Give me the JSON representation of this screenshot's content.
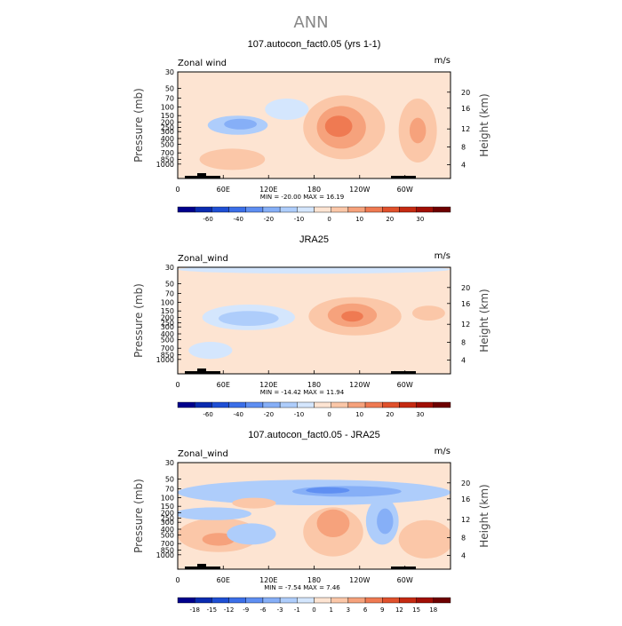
{
  "figure_title": "ANN",
  "colors": {
    "bg": "#ffffff",
    "title": "#888888",
    "topography": "#000000"
  },
  "chart_data": [
    {
      "type": "contour",
      "title": "107.autocon_fact0.05 (yrs 1-1)",
      "left_label": "Zonal wind",
      "units_label": "m/s",
      "ylabel_left": "Pressure (mb)",
      "ylabel_right": "Height (km)",
      "pressure_ticks": [
        "30",
        "50",
        "70",
        "100",
        "150",
        "200",
        "250",
        "300",
        "400",
        "500",
        "700",
        "850",
        "1000"
      ],
      "height_ticks": [
        "20",
        "16",
        "12",
        "8",
        "4"
      ],
      "x_ticks": [
        "0",
        "60E",
        "120E",
        "180",
        "120W",
        "60W"
      ],
      "stats": "MIN = -20.00   MAX = 16.19",
      "min": -20.0,
      "max": 16.19,
      "colorbar_labels": [
        "-60",
        "-40",
        "-20",
        "-10",
        "0",
        "10",
        "20",
        "30"
      ],
      "colorbar_colors": [
        "#00008c",
        "#0a2bb0",
        "#1f4fd4",
        "#3b6fe8",
        "#5f8ff2",
        "#86aff7",
        "#aecdfb",
        "#d4e6fd",
        "#fde4d2",
        "#fbc7a8",
        "#f6a27c",
        "#ef7a52",
        "#e0512c",
        "#c52a12",
        "#a10f05",
        "#6e0000"
      ],
      "regions": [
        {
          "color": "#d4e6fd",
          "rx": 0.08,
          "ry": 0.1,
          "x": 0.4,
          "y": 0.35
        },
        {
          "color": "#aecdfb",
          "rx": 0.11,
          "ry": 0.09,
          "x": 0.22,
          "y": 0.5
        },
        {
          "color": "#86aff7",
          "rx": 0.06,
          "ry": 0.05,
          "x": 0.23,
          "y": 0.49
        },
        {
          "color": "#fbc7a8",
          "rx": 0.15,
          "ry": 0.3,
          "x": 0.61,
          "y": 0.52
        },
        {
          "color": "#f6a27c",
          "rx": 0.09,
          "ry": 0.2,
          "x": 0.6,
          "y": 0.52
        },
        {
          "color": "#ef7a52",
          "rx": 0.05,
          "ry": 0.1,
          "x": 0.59,
          "y": 0.51
        },
        {
          "color": "#fbc7a8",
          "rx": 0.07,
          "ry": 0.3,
          "x": 0.88,
          "y": 0.55
        },
        {
          "color": "#f6a27c",
          "rx": 0.03,
          "ry": 0.12,
          "x": 0.88,
          "y": 0.55
        },
        {
          "color": "#fbc7a8",
          "rx": 0.12,
          "ry": 0.1,
          "x": 0.2,
          "y": 0.82
        }
      ]
    },
    {
      "type": "contour",
      "title": "JRA25",
      "left_label": "Zonal_wind",
      "units_label": "m/s",
      "ylabel_left": "Pressure (mb)",
      "ylabel_right": "Height (km)",
      "pressure_ticks": [
        "30",
        "50",
        "70",
        "100",
        "150",
        "200",
        "250",
        "300",
        "400",
        "500",
        "700",
        "850",
        "1000"
      ],
      "height_ticks": [
        "20",
        "16",
        "12",
        "8",
        "4"
      ],
      "x_ticks": [
        "0",
        "60E",
        "120E",
        "180",
        "120W",
        "60W"
      ],
      "stats": "MIN = -14.42   MAX = 11.94",
      "min": -14.42,
      "max": 11.94,
      "colorbar_labels": [
        "-60",
        "-40",
        "-20",
        "-10",
        "0",
        "10",
        "20",
        "30"
      ],
      "colorbar_colors": [
        "#00008c",
        "#0a2bb0",
        "#1f4fd4",
        "#3b6fe8",
        "#5f8ff2",
        "#86aff7",
        "#aecdfb",
        "#d4e6fd",
        "#fde4d2",
        "#fbc7a8",
        "#f6a27c",
        "#ef7a52",
        "#e0512c",
        "#c52a12",
        "#a10f05",
        "#6e0000"
      ],
      "regions": [
        {
          "color": "#d4e6fd",
          "rx": 0.5,
          "ry": 0.04,
          "x": 0.5,
          "y": 0.02
        },
        {
          "color": "#d4e6fd",
          "rx": 0.17,
          "ry": 0.12,
          "x": 0.26,
          "y": 0.47
        },
        {
          "color": "#aecdfb",
          "rx": 0.11,
          "ry": 0.07,
          "x": 0.26,
          "y": 0.48
        },
        {
          "color": "#fbc7a8",
          "rx": 0.17,
          "ry": 0.18,
          "x": 0.65,
          "y": 0.46
        },
        {
          "color": "#f6a27c",
          "rx": 0.09,
          "ry": 0.11,
          "x": 0.64,
          "y": 0.45
        },
        {
          "color": "#ef7a52",
          "rx": 0.04,
          "ry": 0.05,
          "x": 0.64,
          "y": 0.46
        },
        {
          "color": "#fbc7a8",
          "rx": 0.06,
          "ry": 0.07,
          "x": 0.92,
          "y": 0.43
        },
        {
          "color": "#d4e6fd",
          "rx": 0.08,
          "ry": 0.08,
          "x": 0.12,
          "y": 0.78
        }
      ]
    },
    {
      "type": "contour",
      "title": "107.autocon_fact0.05 - JRA25",
      "left_label": "Zonal_wind",
      "units_label": "m/s",
      "ylabel_left": "Pressure (mb)",
      "ylabel_right": "Height (km)",
      "pressure_ticks": [
        "30",
        "50",
        "70",
        "100",
        "150",
        "200",
        "250",
        "300",
        "400",
        "500",
        "700",
        "850",
        "1000"
      ],
      "height_ticks": [
        "20",
        "16",
        "12",
        "8",
        "4"
      ],
      "x_ticks": [
        "0",
        "60E",
        "120E",
        "180",
        "120W",
        "60W"
      ],
      "stats": "MIN = -7.54   MAX = 7.46",
      "min": -7.54,
      "max": 7.46,
      "colorbar_labels": [
        "-18",
        "-15",
        "-12",
        "-9",
        "-6",
        "-3",
        "-1",
        "0",
        "1",
        "3",
        "6",
        "9",
        "12",
        "15",
        "18"
      ],
      "colorbar_colors": [
        "#00008c",
        "#0a2bb0",
        "#1f4fd4",
        "#3b6fe8",
        "#5f8ff2",
        "#86aff7",
        "#aecdfb",
        "#d4e6fd",
        "#fde4d2",
        "#fbc7a8",
        "#f6a27c",
        "#ef7a52",
        "#e0512c",
        "#c52a12",
        "#a10f05",
        "#6e0000"
      ],
      "regions": [
        {
          "color": "#aecdfb",
          "rx": 0.5,
          "ry": 0.12,
          "x": 0.5,
          "y": 0.28
        },
        {
          "color": "#86aff7",
          "rx": 0.2,
          "ry": 0.05,
          "x": 0.62,
          "y": 0.27
        },
        {
          "color": "#5f8ff2",
          "rx": 0.08,
          "ry": 0.03,
          "x": 0.55,
          "y": 0.26
        },
        {
          "color": "#fbc7a8",
          "rx": 0.08,
          "ry": 0.05,
          "x": 0.28,
          "y": 0.38
        },
        {
          "color": "#aecdfb",
          "rx": 0.06,
          "ry": 0.22,
          "x": 0.75,
          "y": 0.55
        },
        {
          "color": "#86aff7",
          "rx": 0.03,
          "ry": 0.12,
          "x": 0.76,
          "y": 0.55
        },
        {
          "color": "#fbc7a8",
          "rx": 0.11,
          "ry": 0.23,
          "x": 0.57,
          "y": 0.65
        },
        {
          "color": "#f6a27c",
          "rx": 0.06,
          "ry": 0.13,
          "x": 0.57,
          "y": 0.57
        },
        {
          "color": "#fbc7a8",
          "rx": 0.15,
          "ry": 0.16,
          "x": 0.15,
          "y": 0.68
        },
        {
          "color": "#f6a27c",
          "rx": 0.06,
          "ry": 0.06,
          "x": 0.15,
          "y": 0.72
        },
        {
          "color": "#fbc7a8",
          "rx": 0.1,
          "ry": 0.18,
          "x": 0.91,
          "y": 0.72
        },
        {
          "color": "#aecdfb",
          "rx": 0.09,
          "ry": 0.1,
          "x": 0.27,
          "y": 0.67
        },
        {
          "color": "#aecdfb",
          "rx": 0.14,
          "ry": 0.06,
          "x": 0.13,
          "y": 0.48
        }
      ]
    }
  ]
}
